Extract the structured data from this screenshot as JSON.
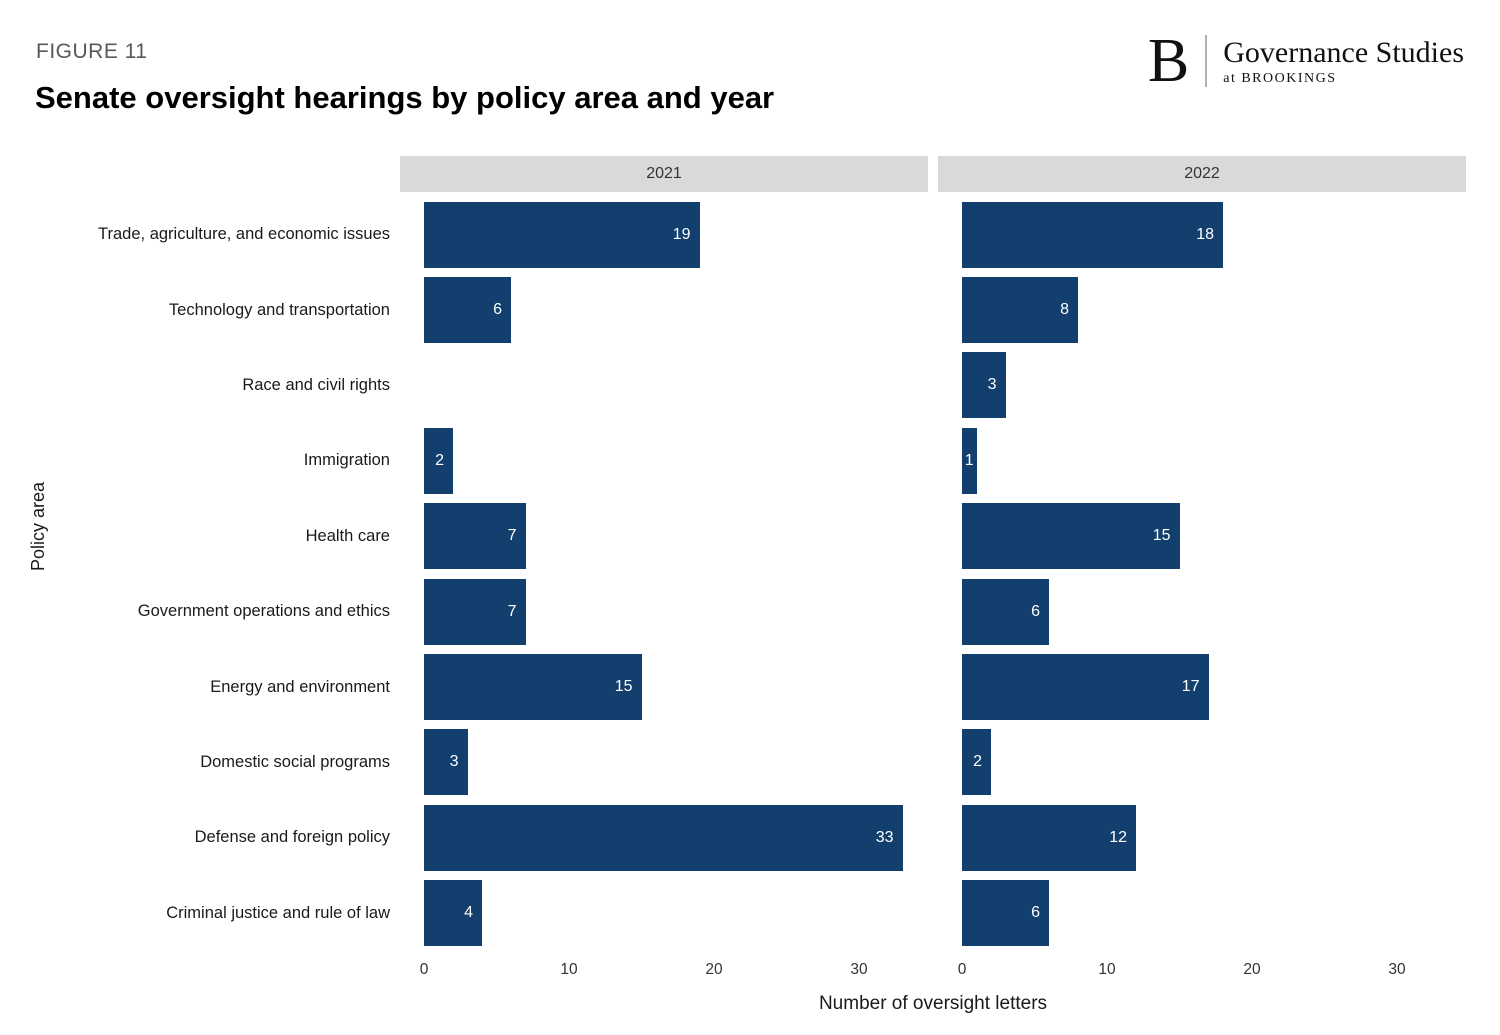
{
  "figure_label": "FIGURE 11",
  "title": "Senate oversight hearings by policy area and year",
  "logo": {
    "letter": "B",
    "name": "Governance Studies",
    "subname": "at BROOKINGS"
  },
  "chart_data": {
    "type": "bar",
    "orientation": "horizontal",
    "title": "Senate oversight hearings by policy area and year",
    "xlabel": "Number of oversight letters",
    "ylabel": "Policy area",
    "facets": [
      "2021",
      "2022"
    ],
    "categories": [
      "Trade, agriculture, and economic issues",
      "Technology and transportation",
      "Race and civil rights",
      "Immigration",
      "Health care",
      "Government operations and ethics",
      "Energy and environment",
      "Domestic social programs",
      "Defense and foreign policy",
      "Criminal justice and rule of law"
    ],
    "series": [
      {
        "name": "2021",
        "values": [
          19,
          6,
          0,
          2,
          7,
          7,
          15,
          3,
          33,
          4
        ]
      },
      {
        "name": "2022",
        "values": [
          18,
          8,
          3,
          1,
          15,
          6,
          17,
          2,
          12,
          6
        ]
      }
    ],
    "xticks": [
      0,
      10,
      20,
      30
    ],
    "xlim": [
      0,
      34.8
    ],
    "bar_color": "#123F6D",
    "panel_header_bg": "#d9d9d9",
    "grid": false,
    "legend": false
  }
}
